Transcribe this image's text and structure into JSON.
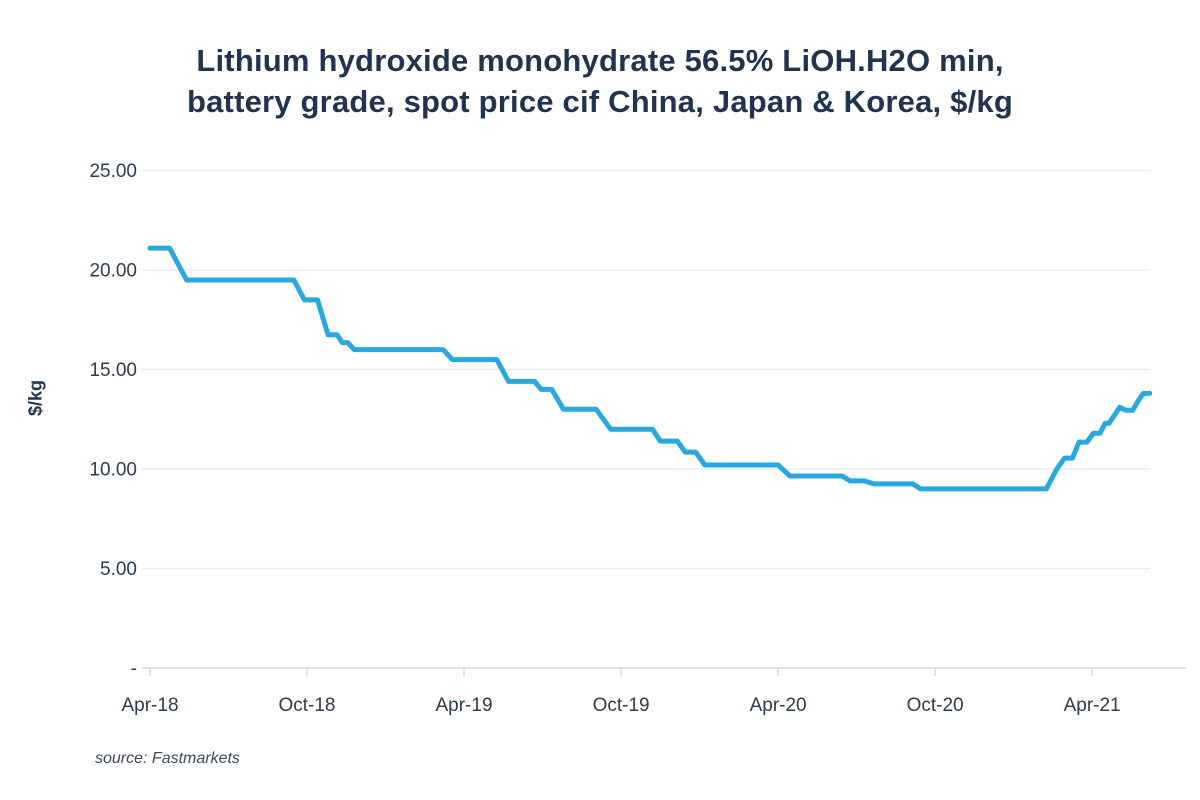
{
  "title": {
    "line1": "Lithium hydroxide monohydrate 56.5% LiOH.H2O min,",
    "line2": "battery grade, spot price cif China, Japan & Korea, $/kg"
  },
  "y_axis_title": "$/kg",
  "source_caption": "source: Fastmarkets",
  "colors": {
    "line": "#29A8E0",
    "title_text": "#21344F",
    "axis_text": "#2C3C4E",
    "source_text": "#3C4A57",
    "gridline": "#E9E9E9",
    "axis_line": "#D9D9D9",
    "background": "#FFFFFF"
  },
  "chart_data": {
    "type": "line",
    "title": "Lithium hydroxide monohydrate 56.5% LiOH.H2O min, battery grade, spot price cif China, Japan & Korea, $/kg",
    "xlabel": "",
    "ylabel": "$/kg",
    "ylim": [
      0,
      25
    ],
    "x_unit": "months since Apr-2018",
    "xlim": [
      -0.3,
      39.6
    ],
    "grid": "horizontal-only",
    "legend": "none",
    "y_ticks": [
      {
        "value": 25,
        "label": "25.00"
      },
      {
        "value": 20,
        "label": "20.00"
      },
      {
        "value": 15,
        "label": "15.00"
      },
      {
        "value": 10,
        "label": "10.00"
      },
      {
        "value": 5,
        "label": "5.00"
      },
      {
        "value": 0,
        "label": "-"
      }
    ],
    "x_ticks": [
      {
        "months": 0,
        "label": "Apr-18"
      },
      {
        "months": 6,
        "label": "Oct-18"
      },
      {
        "months": 12,
        "label": "Apr-19"
      },
      {
        "months": 18,
        "label": "Oct-19"
      },
      {
        "months": 24,
        "label": "Apr-20"
      },
      {
        "months": 30,
        "label": "Oct-20"
      },
      {
        "months": 36,
        "label": "Apr-21"
      }
    ],
    "series": [
      {
        "name": "Lithium hydroxide monohydrate 56.5% min, battery grade, spot price cif China, Japan & Korea",
        "unit": "$/kg",
        "points": [
          [
            0,
            21.1
          ],
          [
            0.75,
            21.1
          ],
          [
            1.4,
            19.5
          ],
          [
            5.5,
            19.5
          ],
          [
            5.9,
            18.5
          ],
          [
            6.4,
            18.5
          ],
          [
            6.8,
            16.75
          ],
          [
            7.15,
            16.75
          ],
          [
            7.35,
            16.35
          ],
          [
            7.55,
            16.35
          ],
          [
            7.8,
            16.0
          ],
          [
            11.2,
            16.0
          ],
          [
            11.55,
            15.5
          ],
          [
            13.25,
            15.5
          ],
          [
            13.7,
            14.4
          ],
          [
            14.7,
            14.4
          ],
          [
            14.95,
            14.0
          ],
          [
            15.35,
            14.0
          ],
          [
            15.8,
            13.0
          ],
          [
            17.05,
            13.0
          ],
          [
            17.6,
            12.0
          ],
          [
            19.2,
            12.0
          ],
          [
            19.5,
            11.4
          ],
          [
            20.15,
            11.4
          ],
          [
            20.45,
            10.85
          ],
          [
            20.85,
            10.85
          ],
          [
            21.2,
            10.2
          ],
          [
            24.0,
            10.2
          ],
          [
            24.45,
            9.65
          ],
          [
            26.45,
            9.65
          ],
          [
            26.75,
            9.4
          ],
          [
            27.3,
            9.4
          ],
          [
            27.65,
            9.25
          ],
          [
            29.15,
            9.25
          ],
          [
            29.45,
            9.0
          ],
          [
            34.25,
            9.0
          ],
          [
            34.65,
            10.0
          ],
          [
            34.95,
            10.55
          ],
          [
            35.25,
            10.55
          ],
          [
            35.5,
            11.35
          ],
          [
            35.8,
            11.35
          ],
          [
            36.05,
            11.8
          ],
          [
            36.3,
            11.8
          ],
          [
            36.5,
            12.3
          ],
          [
            36.65,
            12.3
          ],
          [
            36.85,
            12.7
          ],
          [
            37.05,
            13.1
          ],
          [
            37.3,
            12.95
          ],
          [
            37.55,
            12.95
          ],
          [
            37.75,
            13.4
          ],
          [
            37.95,
            13.8
          ],
          [
            38.2,
            13.8
          ]
        ]
      }
    ]
  }
}
